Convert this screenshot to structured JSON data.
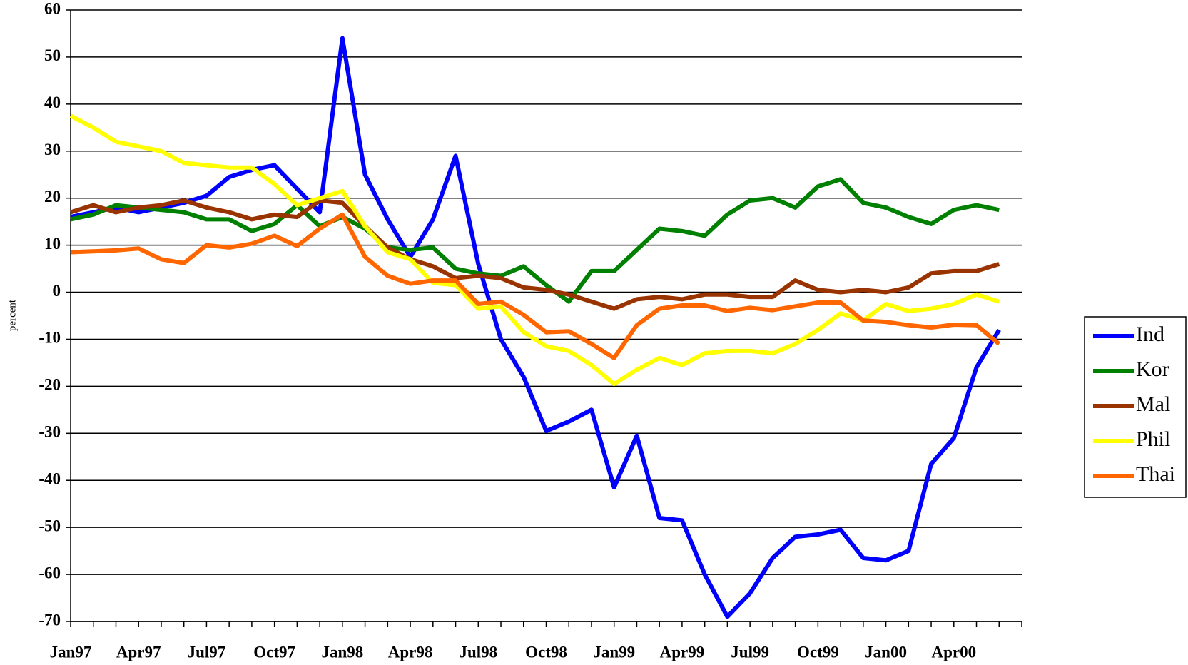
{
  "chart_data": {
    "type": "line",
    "y_label": "percent",
    "categories": [
      "Jan97",
      null,
      null,
      "Apr97",
      null,
      null,
      "Jul97",
      null,
      null,
      "Oct97",
      null,
      null,
      "Jan98",
      null,
      null,
      "Apr98",
      null,
      null,
      "Jul98",
      null,
      null,
      "Oct98",
      null,
      null,
      "Jan99",
      null,
      null,
      "Apr99",
      null,
      null,
      "Jul99",
      null,
      null,
      "Oct99",
      null,
      null,
      "Jan00",
      null,
      null,
      "Apr00",
      null,
      null
    ],
    "series": [
      {
        "name": "Ind",
        "color": "#0000ff",
        "values": [
          16,
          17,
          18,
          17,
          18,
          19,
          20.5,
          24.5,
          26,
          27,
          22,
          17,
          54,
          25,
          15.5,
          7.5,
          15.5,
          29,
          6,
          -10,
          -18,
          -29.5,
          -27.5,
          -25,
          -41.5,
          -30.5,
          -48,
          -48.5,
          -60,
          -69,
          -64,
          -56.5,
          -52,
          -51.5,
          -50.5,
          -56.5,
          -57,
          -55,
          -36.5,
          -31,
          -16,
          -8
        ]
      },
      {
        "name": "Kor",
        "color": "#008000",
        "values": [
          15.5,
          16.5,
          18.5,
          18,
          17.5,
          17,
          15.5,
          15.5,
          13,
          14.5,
          18.5,
          14,
          16,
          13.5,
          9.5,
          9,
          9.5,
          5,
          4,
          3.5,
          5.5,
          1.5,
          -2,
          4.5,
          4.5,
          9,
          13.5,
          13,
          12,
          16.5,
          19.5,
          20,
          18,
          22.5,
          24,
          19,
          18,
          16,
          14.5,
          17.5,
          18.5,
          17.5
        ]
      },
      {
        "name": "Mal",
        "color": "#993300",
        "values": [
          17,
          18.5,
          17,
          18,
          18.5,
          19.5,
          18,
          17,
          15.5,
          16.5,
          16,
          19.5,
          19,
          14,
          9.5,
          7,
          5.5,
          3,
          3.5,
          3,
          1,
          0.5,
          -0.5,
          -2,
          -3.5,
          -1.5,
          -1,
          -1.5,
          -0.5,
          -0.5,
          -1,
          -1,
          2.5,
          0.5,
          0,
          0.5,
          0,
          1,
          4,
          4.5,
          4.5,
          6
        ]
      },
      {
        "name": "Phil",
        "color": "#ffff00",
        "values": [
          37.5,
          35,
          32,
          31,
          30,
          27.5,
          27,
          26.5,
          26.5,
          23,
          18.5,
          20,
          21.5,
          14,
          8.5,
          7,
          2,
          1.5,
          -3.5,
          -3,
          -8.5,
          -11.5,
          -12.5,
          -15.5,
          -19.5,
          -16.5,
          -14,
          -15.5,
          -13,
          -12.5,
          -12.5,
          -13,
          -11,
          -8,
          -4.5,
          -6,
          -2.5,
          -4,
          -3.5,
          -2.5,
          -0.5,
          -2
        ]
      },
      {
        "name": "Thai",
        "color": "#ff6600",
        "values": [
          8.5,
          8.7,
          8.9,
          9.3,
          7,
          6.2,
          10,
          9.5,
          10.3,
          12,
          9.8,
          13.5,
          16.5,
          7.5,
          3.5,
          1.8,
          2.5,
          2.5,
          -2.5,
          -2,
          -4.8,
          -8.5,
          -8.3,
          -11,
          -14,
          -7,
          -3.5,
          -2.8,
          -2.8,
          -4,
          -3.3,
          -3.8,
          -3,
          -2.2,
          -2.2,
          -6,
          -6.3,
          -7,
          -7.5,
          -6.9,
          -7,
          -11
        ]
      }
    ],
    "ylim": [
      -70,
      60
    ],
    "yticks": [
      -70,
      -60,
      -50,
      -40,
      -30,
      -20,
      -10,
      0,
      10,
      20,
      30,
      40,
      50,
      60
    ],
    "grid": true,
    "legend": "right"
  }
}
